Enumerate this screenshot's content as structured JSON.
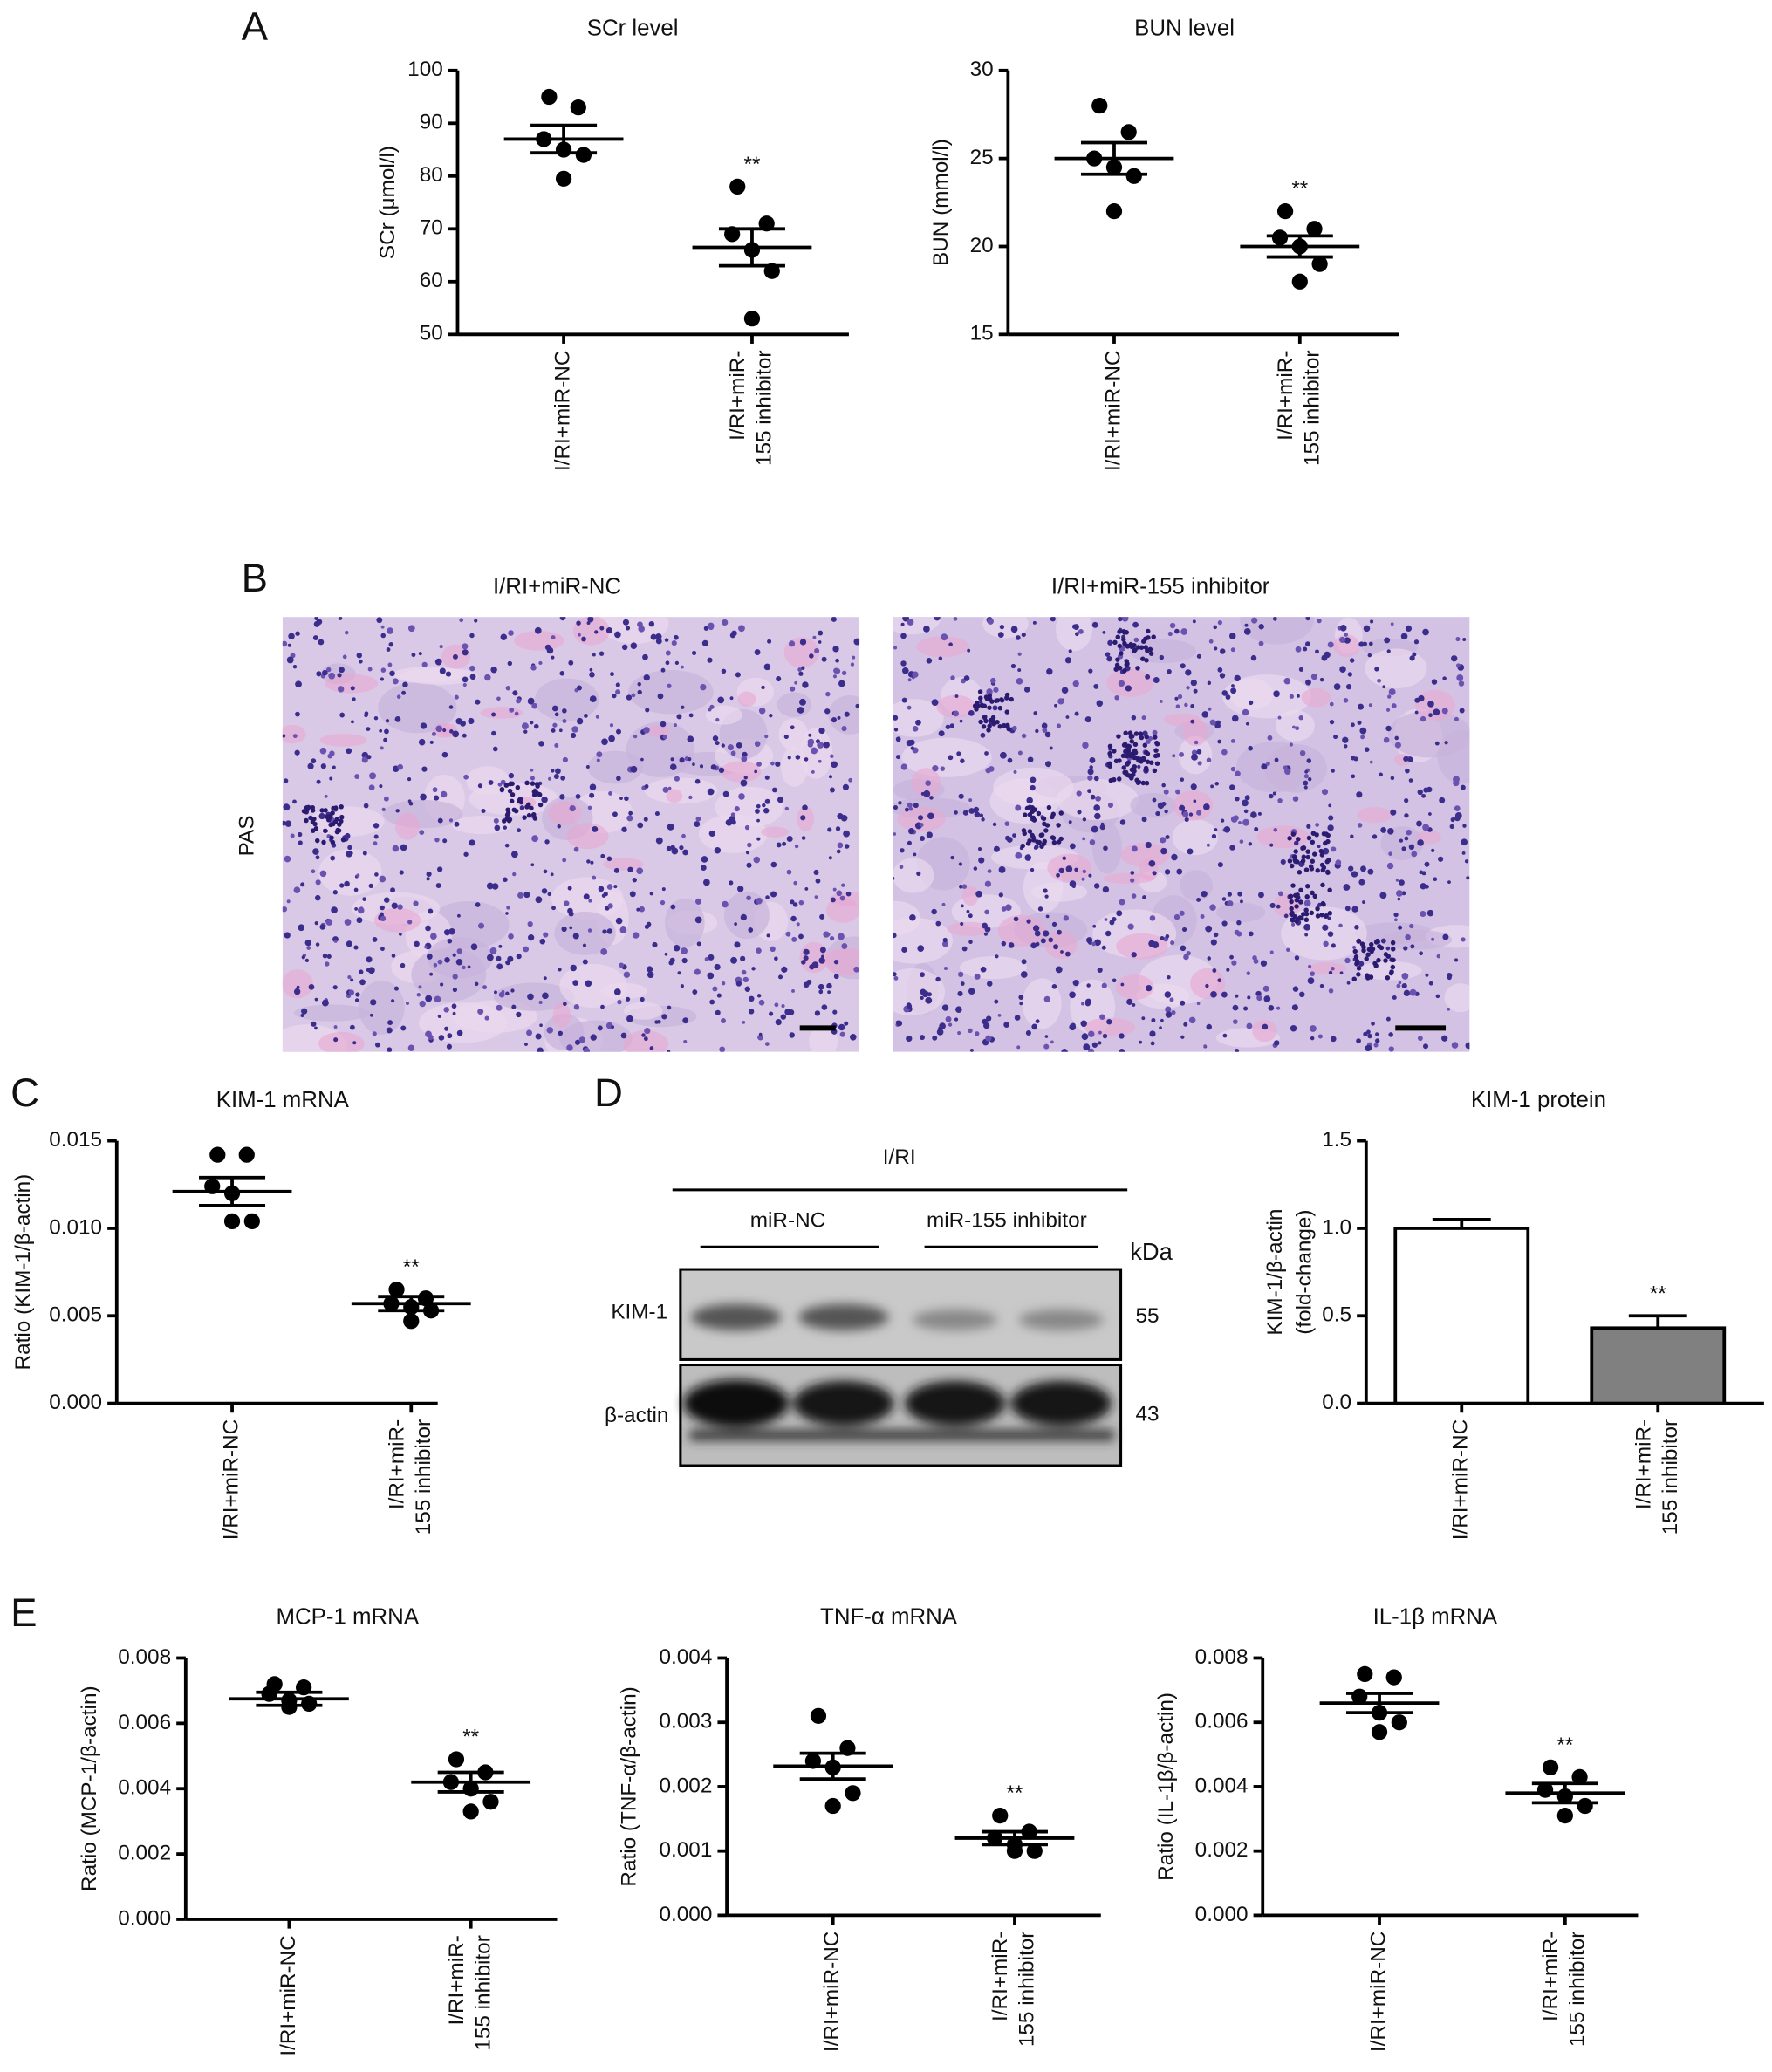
{
  "panels": [
    "A",
    "B",
    "C",
    "D",
    "E"
  ],
  "histology": {
    "titles": [
      "I/RI+miR-NC",
      "I/RI+miR-155 inhibitor"
    ],
    "stain": "PAS"
  },
  "blot": {
    "group": "I/RI",
    "lanes": [
      "miR-NC",
      "miR-155 inhibitor"
    ],
    "unit": "kDa",
    "bands": [
      {
        "name": "KIM-1",
        "size": 55
      },
      {
        "name": "β-actin",
        "size": 43
      }
    ]
  },
  "chart_data": [
    {
      "type": "dot",
      "title": "SCr level",
      "ylabel": [
        "SCr (μmol/l)"
      ],
      "categories": [
        [
          "I/RI+miR-NC"
        ],
        [
          "I/RI+miR-",
          "155 inhibitor"
        ]
      ],
      "values": [
        [
          95,
          93,
          87,
          85,
          84,
          79.5
        ],
        [
          78,
          71,
          69,
          66,
          62,
          53
        ]
      ],
      "means": [
        87,
        66.5
      ],
      "errors": [
        2.6,
        3.5
      ],
      "annotations": [
        null,
        "**"
      ],
      "ylim": [
        50,
        100
      ],
      "yticks": [
        50,
        60,
        70,
        80,
        90,
        100
      ],
      "color": "#000000"
    },
    {
      "type": "dot",
      "title": "BUN level",
      "ylabel": [
        "BUN (mmol/l)"
      ],
      "categories": [
        [
          "I/RI+miR-NC"
        ],
        [
          "I/RI+miR-",
          "155 inhibitor"
        ]
      ],
      "values": [
        [
          28,
          26.5,
          25,
          24.5,
          24,
          22
        ],
        [
          22,
          21,
          20.5,
          20,
          19,
          18
        ]
      ],
      "means": [
        25,
        20
      ],
      "errors": [
        0.9,
        0.6
      ],
      "annotations": [
        null,
        "**"
      ],
      "ylim": [
        15,
        30
      ],
      "yticks": [
        15,
        20,
        25,
        30
      ],
      "color": "#000000"
    },
    {
      "type": "dot",
      "title": "KIM-1 mRNA",
      "ylabel": [
        "Ratio (KIM-1/β-actin)"
      ],
      "categories": [
        [
          "I/RI+miR-NC"
        ],
        [
          "I/RI+miR-",
          "155 inhibitor"
        ]
      ],
      "values": [
        [
          0.0142,
          0.0142,
          0.0124,
          0.012,
          0.0104,
          0.0104
        ],
        [
          0.0065,
          0.006,
          0.0057,
          0.0055,
          0.0053,
          0.0047
        ]
      ],
      "means": [
        0.0121,
        0.0057
      ],
      "errors": [
        0.0008,
        0.0004
      ],
      "annotations": [
        null,
        "**"
      ],
      "ylim": [
        0,
        0.015
      ],
      "yticks": [
        {
          "value": 0,
          "label": "0.000"
        },
        0.005,
        {
          "value": 0.01,
          "label": "0.010"
        },
        0.015
      ],
      "color": "#000000"
    },
    {
      "type": "bar",
      "title": "KIM-1 protein",
      "ylabel": [
        "KIM-1/β-actin",
        "(fold-change)"
      ],
      "categories": [
        [
          "I/RI+miR-NC"
        ],
        [
          "I/RI+miR-",
          "155 inhibitor"
        ]
      ],
      "values": [
        1.0,
        0.43
      ],
      "errors": [
        0.05,
        0.07
      ],
      "annotations": [
        null,
        "**"
      ],
      "colors": [
        "#ffffff",
        "#808080"
      ],
      "ylim": [
        0,
        1.5
      ],
      "yticks": [
        {
          "value": 0,
          "label": "0.0"
        },
        0.5,
        {
          "value": 1,
          "label": "1.0"
        },
        1.5
      ]
    },
    {
      "type": "dot",
      "title": "MCP-1 mRNA",
      "ylabel": [
        "Ratio (MCP-1/β-actin)"
      ],
      "categories": [
        [
          "I/RI+miR-NC"
        ],
        [
          "I/RI+miR-",
          "155 inhibitor"
        ]
      ],
      "values": [
        [
          0.0072,
          0.0071,
          0.0069,
          0.0067,
          0.0066,
          0.0065
        ],
        [
          0.0049,
          0.0045,
          0.0042,
          0.004,
          0.0036,
          0.0033
        ]
      ],
      "means": [
        0.00675,
        0.0042
      ],
      "errors": [
        0.0002,
        0.0003
      ],
      "annotations": [
        null,
        "**"
      ],
      "ylim": [
        0,
        0.008
      ],
      "yticks": [
        {
          "value": 0,
          "label": "0.000"
        },
        0.002,
        0.004,
        0.006,
        0.008
      ],
      "color": "#000000"
    },
    {
      "type": "dot",
      "title": "TNF-α mRNA",
      "ylabel": [
        "Ratio (TNF-α/β-actin)"
      ],
      "categories": [
        [
          "I/RI+miR-NC"
        ],
        [
          "I/RI+miR-",
          "155 inhibitor"
        ]
      ],
      "values": [
        [
          0.0031,
          0.0026,
          0.0024,
          0.0023,
          0.0019,
          0.0017
        ],
        [
          0.00155,
          0.0013,
          0.0012,
          0.0011,
          0.001,
          0.001
        ]
      ],
      "means": [
        0.00232,
        0.0012
      ],
      "errors": [
        0.0002,
        0.0001
      ],
      "annotations": [
        null,
        "**"
      ],
      "ylim": [
        0,
        0.004
      ],
      "yticks": [
        {
          "value": 0,
          "label": "0.000"
        },
        0.001,
        0.002,
        0.003,
        0.004
      ],
      "color": "#000000"
    },
    {
      "type": "dot",
      "title": "IL-1β mRNA",
      "ylabel": [
        "Ratio (IL-1β/β-actin)"
      ],
      "categories": [
        [
          "I/RI+miR-NC"
        ],
        [
          "I/RI+miR-",
          "155 inhibitor"
        ]
      ],
      "values": [
        [
          0.0075,
          0.0074,
          0.0068,
          0.0063,
          0.006,
          0.0057
        ],
        [
          0.0046,
          0.0043,
          0.0039,
          0.0037,
          0.0034,
          0.0031
        ]
      ],
      "means": [
        0.0066,
        0.0038
      ],
      "errors": [
        0.0003,
        0.0003
      ],
      "annotations": [
        null,
        "**"
      ],
      "ylim": [
        0,
        0.008
      ],
      "yticks": [
        {
          "value": 0,
          "label": "0.000"
        },
        0.002,
        0.004,
        0.006,
        0.008
      ],
      "color": "#000000"
    }
  ]
}
